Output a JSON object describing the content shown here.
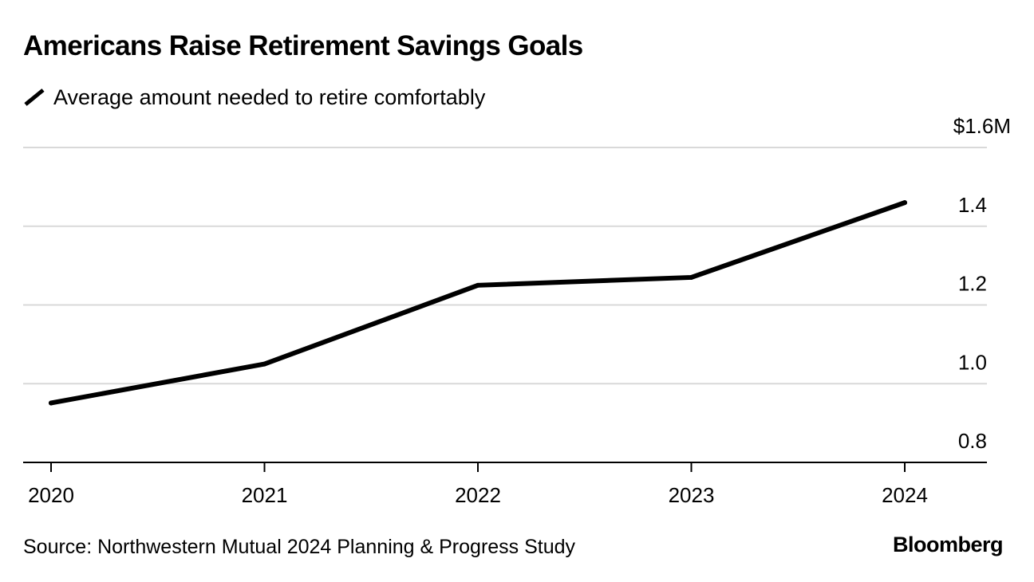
{
  "chart_data": {
    "type": "line",
    "title": "Americans Raise Retirement Savings Goals",
    "legend": {
      "position": "top-left",
      "entries": [
        "Average amount needed to retire comfortably"
      ]
    },
    "categories": [
      "2020",
      "2021",
      "2022",
      "2023",
      "2024"
    ],
    "series": [
      {
        "name": "Average amount needed to retire comfortably",
        "values": [
          0.951,
          1.05,
          1.25,
          1.27,
          1.46
        ],
        "color": "#000000"
      }
    ],
    "ylim": [
      0.8,
      1.6
    ],
    "yticks": [
      {
        "value": 1.6,
        "label": "$1.6M"
      },
      {
        "value": 1.4,
        "label": "1.4"
      },
      {
        "value": 1.2,
        "label": "1.2"
      },
      {
        "value": 1.0,
        "label": "1.0"
      },
      {
        "value": 0.8,
        "label": "0.8"
      }
    ],
    "ylabel": "",
    "xlabel": "",
    "grid": true,
    "yaxis_side": "right"
  },
  "footer": {
    "source": "Source: Northwestern Mutual 2024 Planning & Progress Study",
    "brand": "Bloomberg"
  },
  "colors": {
    "line": "#000000",
    "grid": "#d9d9d9",
    "axis": "#000000",
    "text": "#000000",
    "background": "#ffffff"
  }
}
